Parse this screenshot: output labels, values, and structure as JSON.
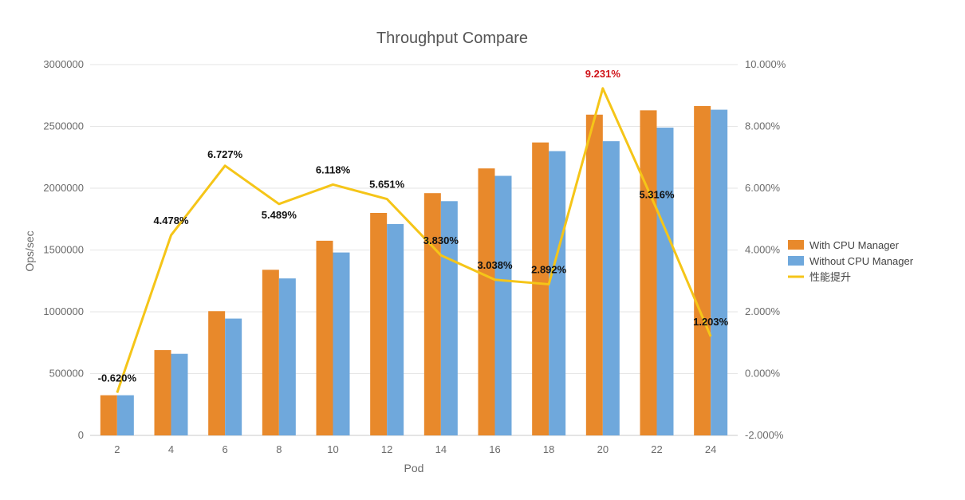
{
  "chart_data": {
    "type": "bar",
    "title": "Throughput Compare",
    "xlabel": "Pod",
    "ylabel": "Ops/sec",
    "categories": [
      "2",
      "4",
      "6",
      "8",
      "10",
      "12",
      "14",
      "16",
      "18",
      "20",
      "22",
      "24"
    ],
    "ylim": [
      0,
      3000000
    ],
    "yticks": [
      "0",
      "500000",
      "1000000",
      "1500000",
      "2000000",
      "2500000",
      "3000000"
    ],
    "y2lim": [
      -0.02,
      0.1
    ],
    "y2ticks": [
      "-2.000%",
      "0.000%",
      "2.000%",
      "4.000%",
      "6.000%",
      "8.000%",
      "10.000%"
    ],
    "grid": true,
    "legend_position": "right",
    "series": [
      {
        "name": "With CPU Manager",
        "kind": "bar",
        "axis": "left",
        "color": "#e8892b",
        "values": [
          325000,
          690000,
          1005000,
          1340000,
          1575000,
          1800000,
          1960000,
          2160000,
          2370000,
          2595000,
          2630000,
          2665000
        ]
      },
      {
        "name": "Without CPU Manager",
        "kind": "bar",
        "axis": "left",
        "color": "#6fa8dc",
        "values": [
          325000,
          660000,
          945000,
          1270000,
          1480000,
          1710000,
          1895000,
          2100000,
          2300000,
          2380000,
          2490000,
          2635000
        ]
      },
      {
        "name": "性能提升",
        "kind": "line",
        "axis": "right",
        "color": "#f5c518",
        "values": [
          -0.0062,
          0.04478,
          0.06727,
          0.05489,
          0.06118,
          0.05651,
          0.0383,
          0.03038,
          0.02892,
          0.09231,
          0.05316,
          0.01203
        ],
        "labels": [
          "-0.620%",
          "4.478%",
          "6.727%",
          "5.489%",
          "6.118%",
          "5.651%",
          "3.830%",
          "3.038%",
          "2.892%",
          "9.231%",
          "5.316%",
          "1.203%"
        ],
        "highlight_label_index": 9,
        "highlight_color": "#d0141a"
      }
    ]
  }
}
